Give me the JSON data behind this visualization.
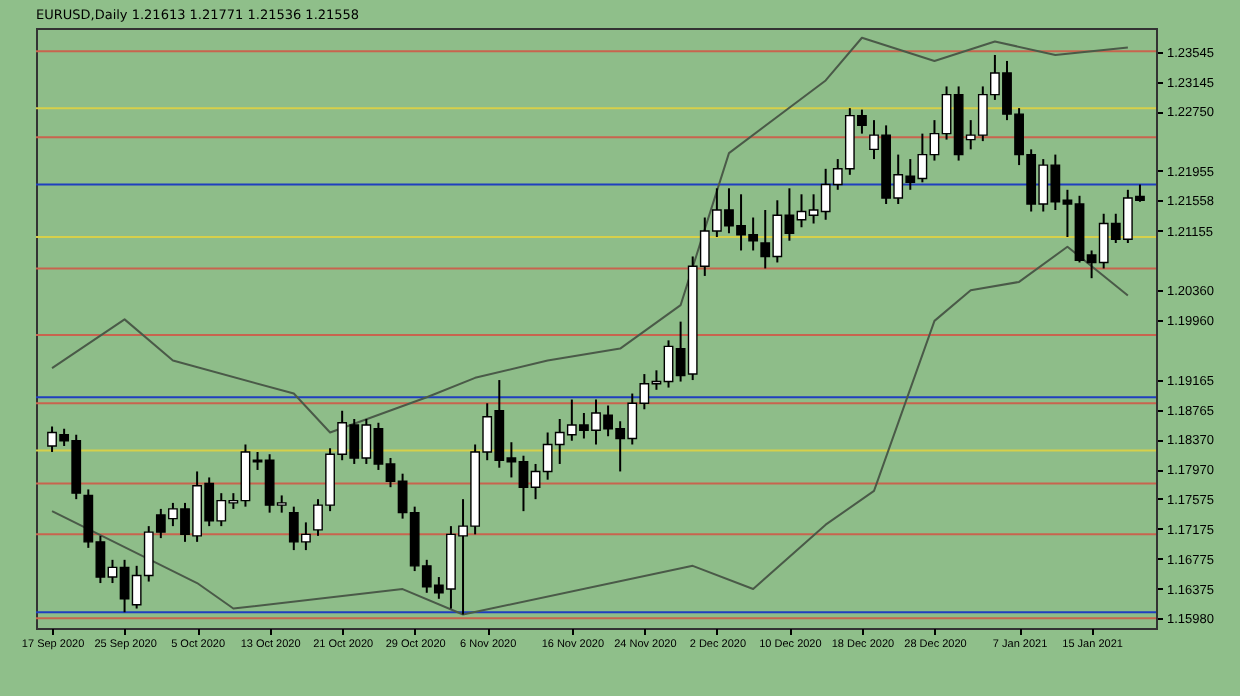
{
  "chart_data": {
    "type": "candlestick",
    "title": "EURUSD,Daily  1.21613 1.21771 1.21536 1.21558",
    "categories": [
      "17 Sep 2020",
      null,
      null,
      null,
      null,
      null,
      "25 Sep 2020",
      null,
      null,
      null,
      null,
      null,
      "5 Oct 2020",
      null,
      null,
      null,
      null,
      null,
      "13 Oct 2020",
      null,
      null,
      null,
      null,
      null,
      "21 Oct 2020",
      null,
      null,
      null,
      null,
      null,
      "29 Oct 2020",
      null,
      null,
      null,
      null,
      null,
      "6 Nov 2020",
      null,
      null,
      null,
      null,
      null,
      null,
      "16 Nov 2020",
      null,
      null,
      null,
      null,
      null,
      "24 Nov 2020",
      null,
      null,
      null,
      null,
      null,
      "2 Dec 2020",
      null,
      null,
      null,
      null,
      null,
      "10 Dec 2020",
      null,
      null,
      null,
      null,
      null,
      "18 Dec 2020",
      null,
      null,
      null,
      null,
      null,
      "28 Dec 2020",
      null,
      null,
      null,
      null,
      null,
      null,
      "7 Jan 2021",
      null,
      null,
      null,
      null,
      null,
      "15 Jan 2021",
      null,
      null,
      null,
      null
    ],
    "ohlc": [
      [
        1.1828,
        1.1854,
        1.182,
        1.1846
      ],
      [
        1.1843,
        1.1851,
        1.1828,
        1.1835
      ],
      [
        1.1835,
        1.1843,
        1.1757,
        1.1765
      ],
      [
        1.1762,
        1.177,
        1.1692,
        1.17
      ],
      [
        1.17,
        1.1708,
        1.1645,
        1.1653
      ],
      [
        1.1653,
        1.1676,
        1.1645,
        1.1666
      ],
      [
        1.1666,
        1.1676,
        1.1606,
        1.1624
      ],
      [
        1.1616,
        1.1668,
        1.1611,
        1.1655
      ],
      [
        1.1655,
        1.1721,
        1.1647,
        1.1713
      ],
      [
        1.1736,
        1.1744,
        1.1705,
        1.1713
      ],
      [
        1.1731,
        1.1752,
        1.1721,
        1.1744
      ],
      [
        1.1744,
        1.1752,
        1.17,
        1.171
      ],
      [
        1.1708,
        1.1794,
        1.17,
        1.1775
      ],
      [
        1.1778,
        1.1786,
        1.1721,
        1.1728
      ],
      [
        1.1728,
        1.1765,
        1.1721,
        1.1755
      ],
      [
        1.1752,
        1.1765,
        1.1744,
        1.1755
      ],
      [
        1.1755,
        1.183,
        1.1747,
        1.182
      ],
      [
        1.1807,
        1.182,
        1.1796,
        1.1809
      ],
      [
        1.1809,
        1.1817,
        1.1739,
        1.1749
      ],
      [
        1.1749,
        1.1762,
        1.1739,
        1.1752
      ],
      [
        1.1739,
        1.1747,
        1.1689,
        1.17
      ],
      [
        1.17,
        1.1726,
        1.1689,
        1.171
      ],
      [
        1.1716,
        1.1757,
        1.1708,
        1.1749
      ],
      [
        1.1749,
        1.1825,
        1.1741,
        1.1817
      ],
      [
        1.1817,
        1.1875,
        1.1809,
        1.1859
      ],
      [
        1.1856,
        1.1864,
        1.1804,
        1.1812
      ],
      [
        1.1812,
        1.1864,
        1.1804,
        1.1856
      ],
      [
        1.1851,
        1.1859,
        1.1796,
        1.1804
      ],
      [
        1.1804,
        1.1812,
        1.1773,
        1.1781
      ],
      [
        1.1781,
        1.1791,
        1.1731,
        1.1739
      ],
      [
        1.1739,
        1.1747,
        1.1661,
        1.1668
      ],
      [
        1.1668,
        1.1676,
        1.1632,
        1.164
      ],
      [
        1.1642,
        1.1653,
        1.1624,
        1.1632
      ],
      [
        1.1637,
        1.1721,
        1.1611,
        1.171
      ],
      [
        1.1708,
        1.1757,
        1.1603,
        1.1721
      ],
      [
        1.1721,
        1.183,
        1.171,
        1.182
      ],
      [
        1.182,
        1.1885,
        1.1809,
        1.1867
      ],
      [
        1.1875,
        1.1916,
        1.1799,
        1.1809
      ],
      [
        1.1812,
        1.1833,
        1.1786,
        1.1807
      ],
      [
        1.1807,
        1.1815,
        1.1741,
        1.1773
      ],
      [
        1.1773,
        1.1804,
        1.1757,
        1.1794
      ],
      [
        1.1794,
        1.1846,
        1.1783,
        1.183
      ],
      [
        1.183,
        1.1864,
        1.1804,
        1.1846
      ],
      [
        1.1843,
        1.189,
        1.1835,
        1.1856
      ],
      [
        1.1856,
        1.1872,
        1.1838,
        1.1849
      ],
      [
        1.1849,
        1.189,
        1.183,
        1.1872
      ],
      [
        1.1869,
        1.1882,
        1.1841,
        1.1851
      ],
      [
        1.1851,
        1.1861,
        1.1794,
        1.1838
      ],
      [
        1.1838,
        1.1898,
        1.183,
        1.1885
      ],
      [
        1.1885,
        1.1924,
        1.1877,
        1.1911
      ],
      [
        1.1911,
        1.1929,
        1.1903,
        1.1914
      ],
      [
        1.1914,
        1.1969,
        1.1906,
        1.1961
      ],
      [
        1.1958,
        1.1994,
        1.1914,
        1.1922
      ],
      [
        1.1924,
        1.2081,
        1.1916,
        1.2068
      ],
      [
        1.2068,
        1.2133,
        1.2055,
        1.2115
      ],
      [
        1.2115,
        1.2172,
        1.2107,
        1.2143
      ],
      [
        1.2143,
        1.2172,
        1.2112,
        1.2122
      ],
      [
        1.2122,
        1.2164,
        1.2089,
        1.211
      ],
      [
        1.211,
        1.2133,
        1.2089,
        1.2102
      ],
      [
        1.2099,
        1.2143,
        1.2065,
        1.2081
      ],
      [
        1.2081,
        1.2156,
        1.2073,
        1.2136
      ],
      [
        1.2136,
        1.2172,
        1.2102,
        1.2112
      ],
      [
        1.213,
        1.2164,
        1.212,
        1.2141
      ],
      [
        1.2136,
        1.2164,
        1.2125,
        1.2143
      ],
      [
        1.2141,
        1.2198,
        1.213,
        1.2177
      ],
      [
        1.2177,
        1.2211,
        1.217,
        1.2198
      ],
      [
        1.2198,
        1.2279,
        1.219,
        1.2269
      ],
      [
        1.2269,
        1.2277,
        1.2245,
        1.2256
      ],
      [
        1.2224,
        1.2263,
        1.2211,
        1.2243
      ],
      [
        1.2243,
        1.2256,
        1.2151,
        1.2159
      ],
      [
        1.2159,
        1.2217,
        1.2151,
        1.219
      ],
      [
        1.2188,
        1.2211,
        1.217,
        1.218
      ],
      [
        1.2185,
        1.2245,
        1.218,
        1.2217
      ],
      [
        1.2217,
        1.2263,
        1.2209,
        1.2245
      ],
      [
        1.2245,
        1.2308,
        1.2237,
        1.2297
      ],
      [
        1.2297,
        1.2308,
        1.2209,
        1.2217
      ],
      [
        1.2237,
        1.2263,
        1.2224,
        1.2243
      ],
      [
        1.2243,
        1.2308,
        1.2235,
        1.2297
      ],
      [
        1.2297,
        1.235,
        1.229,
        1.2326
      ],
      [
        1.2326,
        1.2342,
        1.2263,
        1.2271
      ],
      [
        1.2271,
        1.2279,
        1.2203,
        1.2217
      ],
      [
        1.2217,
        1.2224,
        1.2141,
        1.2151
      ],
      [
        1.2151,
        1.2211,
        1.2141,
        1.2203
      ],
      [
        1.2203,
        1.2217,
        1.2143,
        1.2154
      ],
      [
        1.2156,
        1.217,
        1.2107,
        1.2151
      ],
      [
        1.2151,
        1.2162,
        1.2073,
        1.2076
      ],
      [
        1.2083,
        1.2089,
        1.2052,
        1.2073
      ],
      [
        1.2073,
        1.2138,
        1.2065,
        1.2125
      ],
      [
        1.2125,
        1.2138,
        1.2099,
        1.2104
      ],
      [
        1.2104,
        1.217,
        1.2099,
        1.2159
      ],
      [
        1.2161,
        1.2177,
        1.2154,
        1.2156
      ]
    ],
    "series": [
      {
        "type": "line",
        "color": "#4a5a48",
        "values": [
          1.1932,
          null,
          null,
          null,
          null,
          null,
          1.1997,
          null,
          null,
          null,
          1.1942,
          null,
          null,
          null,
          null,
          null,
          null,
          null,
          null,
          null,
          1.1898,
          null,
          null,
          1.1846,
          null,
          null,
          null,
          null,
          null,
          null,
          null,
          1.1893,
          null,
          null,
          null,
          1.1919,
          null,
          null,
          null,
          null,
          null,
          1.1942,
          null,
          null,
          null,
          null,
          null,
          1.1958,
          null,
          null,
          null,
          null,
          1.2016,
          null,
          null,
          null,
          1.2219,
          null,
          null,
          null,
          null,
          null,
          null,
          null,
          1.2316,
          null,
          null,
          1.2373,
          null,
          null,
          null,
          null,
          null,
          1.2342,
          null,
          null,
          null,
          null,
          1.2368,
          null,
          null,
          null,
          null,
          1.235,
          null,
          null,
          null,
          null,
          null,
          1.236,
          null
        ]
      },
      {
        "type": "line",
        "color": "#4a5a48",
        "values": [
          1.1741,
          null,
          null,
          null,
          null,
          null,
          null,
          null,
          null,
          null,
          null,
          null,
          1.1645,
          null,
          null,
          1.1611,
          null,
          null,
          null,
          null,
          null,
          null,
          null,
          null,
          null,
          null,
          null,
          null,
          null,
          1.1637,
          null,
          null,
          null,
          null,
          1.1603,
          null,
          null,
          null,
          null,
          null,
          null,
          null,
          null,
          null,
          null,
          null,
          null,
          null,
          null,
          null,
          null,
          null,
          null,
          1.1668,
          null,
          null,
          null,
          null,
          1.1637,
          null,
          null,
          null,
          null,
          null,
          1.1723,
          null,
          null,
          null,
          1.1768,
          null,
          null,
          null,
          null,
          1.1995,
          null,
          null,
          1.2036,
          null,
          null,
          null,
          1.2047,
          null,
          null,
          null,
          1.2094,
          null,
          null,
          null,
          null,
          1.2029,
          null
        ]
      }
    ],
    "ylim": [
      1.1585,
      1.2386
    ],
    "yticks": [
      {
        "value": 1.1598,
        "label": "1.15980"
      },
      {
        "value": 1.16375,
        "label": "1.16375"
      },
      {
        "value": 1.16775,
        "label": "1.16775"
      },
      {
        "value": 1.17175,
        "label": "1.17175"
      },
      {
        "value": 1.17575,
        "label": "1.17575"
      },
      {
        "value": 1.1797,
        "label": "1.17970"
      },
      {
        "value": 1.1837,
        "label": "1.18370"
      },
      {
        "value": 1.18765,
        "label": "1.18765"
      },
      {
        "value": 1.19165,
        "label": "1.19165"
      },
      {
        "value": 1.1996,
        "label": "1.19960"
      },
      {
        "value": 1.2036,
        "label": "1.20360"
      },
      {
        "value": 1.21155,
        "label": "1.21155"
      },
      {
        "value": 1.21558,
        "label": "1.21558"
      },
      {
        "value": 1.21955,
        "label": "1.21955"
      },
      {
        "value": 1.2275,
        "label": "1.22750"
      },
      {
        "value": 1.23145,
        "label": "1.23145"
      },
      {
        "value": 1.23545,
        "label": "1.23545"
      }
    ],
    "ref_lines": [
      {
        "axis": "y",
        "value": 1.2355,
        "color": "#c8644e"
      },
      {
        "axis": "y",
        "value": 1.2279,
        "color": "#d6d04a"
      },
      {
        "axis": "y",
        "value": 1.224,
        "color": "#c8644e"
      },
      {
        "axis": "y",
        "value": 1.2107,
        "color": "#d6d04a"
      },
      {
        "axis": "y",
        "value": 1.2065,
        "color": "#c8644e"
      },
      {
        "axis": "y",
        "value": 1.1976,
        "color": "#c8644e"
      },
      {
        "axis": "y",
        "value": 1.1885,
        "color": "#c8644e"
      },
      {
        "axis": "y",
        "value": 1.1822,
        "color": "#d6d04a"
      },
      {
        "axis": "y",
        "value": 1.1778,
        "color": "#c8644e"
      },
      {
        "axis": "y",
        "value": 1.171,
        "color": "#c8644e"
      },
      {
        "axis": "y",
        "value": 1.1598,
        "color": "#c8644e"
      },
      {
        "axis": "y",
        "value": 1.2177,
        "color": "#1f3fbf"
      },
      {
        "axis": "y",
        "value": 1.1893,
        "color": "#1f3fbf"
      },
      {
        "axis": "y",
        "value": 1.1606,
        "color": "#1f3fbf"
      }
    ]
  }
}
